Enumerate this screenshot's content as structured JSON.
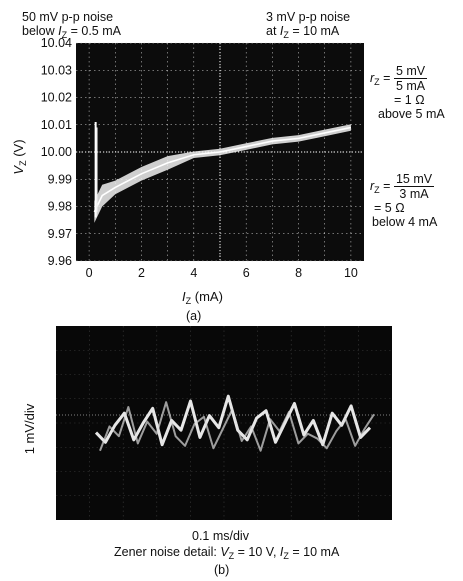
{
  "panel_a": {
    "annot_left": {
      "line1": "50 mV p-p noise",
      "line2_prefix": "below ",
      "line2_var": "I",
      "line2_sub": "Z",
      "line2_suffix": " = 0.5 mA"
    },
    "annot_right": {
      "line1": "3 mV p-p noise",
      "line2_prefix": "at ",
      "line2_var": "I",
      "line2_sub": "Z",
      "line2_suffix": " = 10 mA"
    },
    "rz1": {
      "var": "r",
      "sub": "Z",
      "eq": "=",
      "num": "5 mV",
      "den": "5 mA",
      "result": "= 1 Ω",
      "note": "above 5 mA"
    },
    "rz2": {
      "var": "r",
      "sub": "Z",
      "eq": "=",
      "num": "15 mV",
      "den": "3 mA",
      "result": "=   5 Ω",
      "note": "below 4 mA"
    },
    "ylabel": {
      "var": "V",
      "sub": "Z",
      "unit": " (V)"
    },
    "xlabel": {
      "var": "I",
      "sub": "Z",
      "unit": " (mA)"
    },
    "caption": "(a)"
  },
  "panel_b": {
    "ylabel": "1 mV/div",
    "xlabel": "0.1 ms/div",
    "detail_prefix": "Zener noise detail:  ",
    "detail_v": "V",
    "detail_vsub": "Z",
    "detail_mid": " = 10 V, ",
    "detail_i": "I",
    "detail_isub": "Z",
    "detail_end": " = 10 mA",
    "caption": "(b)"
  },
  "chart_data": [
    {
      "type": "line",
      "x": [
        0.2,
        0.3,
        0.5,
        1,
        2,
        3,
        4,
        5,
        6,
        7,
        8,
        9,
        10
      ],
      "series": [
        {
          "values": [
            9.978,
            9.98,
            9.984,
            9.987,
            9.992,
            9.996,
            9.999,
            10.0,
            10.002,
            10.004,
            10.005,
            10.007,
            10.009
          ]
        }
      ],
      "xticks": [
        "0",
        "2",
        "4",
        "6",
        "8",
        "10"
      ],
      "yticks": [
        "10.04",
        "10.03",
        "10.02",
        "10.01",
        "10.00",
        "9.99",
        "9.98",
        "9.97",
        "9.96"
      ],
      "xlim": [
        -0.5,
        10.5
      ],
      "ylim": [
        9.96,
        10.04
      ],
      "grid": true
    },
    {
      "type": "line",
      "note_free": true,
      "series": [
        {
          "values": [
            0.1,
            -0.3,
            0.4,
            0.9,
            -0.2,
            0.5,
            1.1,
            -0.4,
            0.6,
            0.2,
            1.4,
            -0.1,
            0.8,
            0.3,
            1.6,
            0.2,
            -0.2,
            0.7,
            1.0,
            -0.3,
            0.5,
            1.3,
            0.0,
            0.6,
            -0.4,
            0.9,
            0.4,
            1.2,
            -0.1,
            0.3
          ]
        }
      ],
      "grid": true
    }
  ]
}
